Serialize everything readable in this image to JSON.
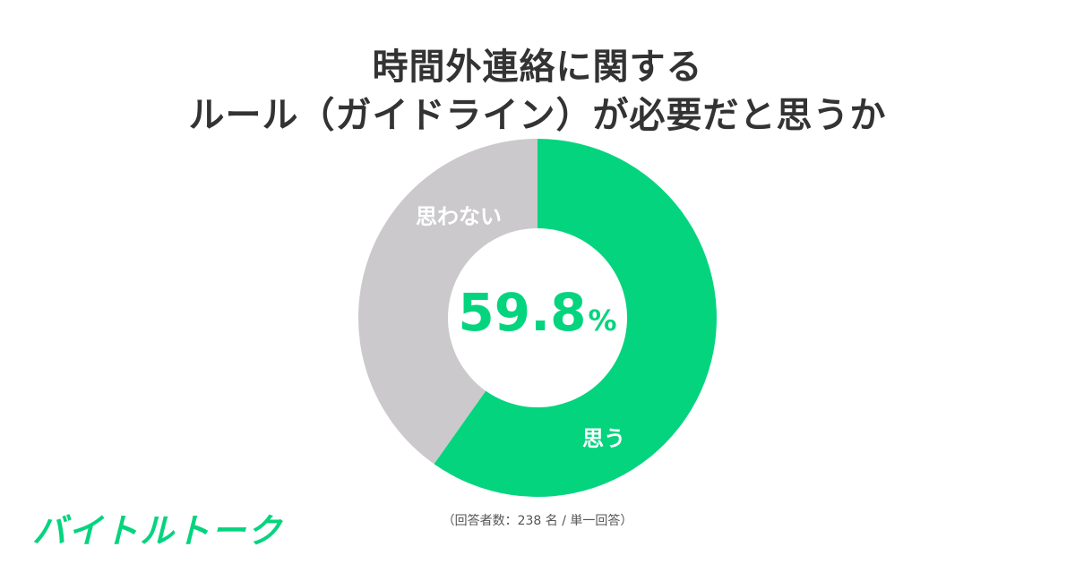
{
  "title": {
    "line1": "時間外連絡に関する",
    "line2": "ルール（ガイドライン）が必要だと思うか"
  },
  "chart_data": {
    "type": "pie",
    "subtype": "donut",
    "title": "時間外連絡に関する ルール（ガイドライン）が必要だと思うか",
    "categories": [
      "思う",
      "思わない"
    ],
    "values": [
      59.8,
      40.2
    ],
    "unit": "%",
    "colors": [
      "#05d47e",
      "#cbc9cc"
    ],
    "center_label": "59.8%",
    "start_angle": "12 o'clock, clockwise"
  },
  "center": {
    "value": "59.8",
    "unit": "%"
  },
  "labels": {
    "yes": "思う",
    "no": "思わない"
  },
  "note": "（回答者数：238 名 / 単一回答）",
  "logo": "バイトルトーク",
  "colors": {
    "accent": "#05d47e",
    "gray": "#cbc9cc",
    "text": "#333333"
  }
}
